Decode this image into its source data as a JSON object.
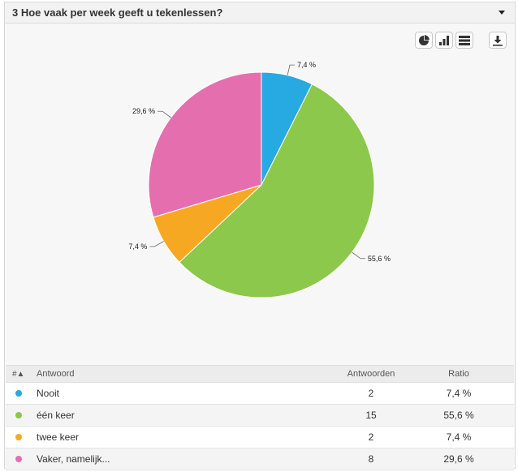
{
  "header": {
    "title": "3 Hoe vaak per week geeft u tekenlessen?"
  },
  "toolbar": {
    "buttons": [
      {
        "icon": "pie-chart-icon"
      },
      {
        "icon": "bar-chart-icon"
      },
      {
        "icon": "table-view-icon"
      },
      {
        "icon": "download-icon"
      }
    ]
  },
  "chart_data": {
    "type": "pie",
    "categories": [
      "Nooit",
      "één keer",
      "twee keer",
      "Vaker, namelijk..."
    ],
    "values": [
      2,
      15,
      2,
      8
    ],
    "labels": [
      "7,4 %",
      "55,6 %",
      "7,4 %",
      "29,6 %"
    ],
    "colors": [
      "#27a9e1",
      "#8cc84b",
      "#f7a823",
      "#e56fae"
    ],
    "start_angle_deg": 0,
    "direction": "clockwise"
  },
  "table": {
    "headers": {
      "sort": "#▲",
      "answer": "Antwoord",
      "count": "Antwoorden",
      "ratio": "Ratio"
    },
    "rows": [
      {
        "label": "Nooit",
        "count": "2",
        "ratio": "7,4 %",
        "color": "#27a9e1"
      },
      {
        "label": "één keer",
        "count": "15",
        "ratio": "55,6 %",
        "color": "#8cc84b"
      },
      {
        "label": "twee keer",
        "count": "2",
        "ratio": "7,4 %",
        "color": "#f7a823"
      },
      {
        "label": "Vaker, namelijk...",
        "count": "8",
        "ratio": "29,6 %",
        "color": "#e56fae"
      }
    ]
  }
}
